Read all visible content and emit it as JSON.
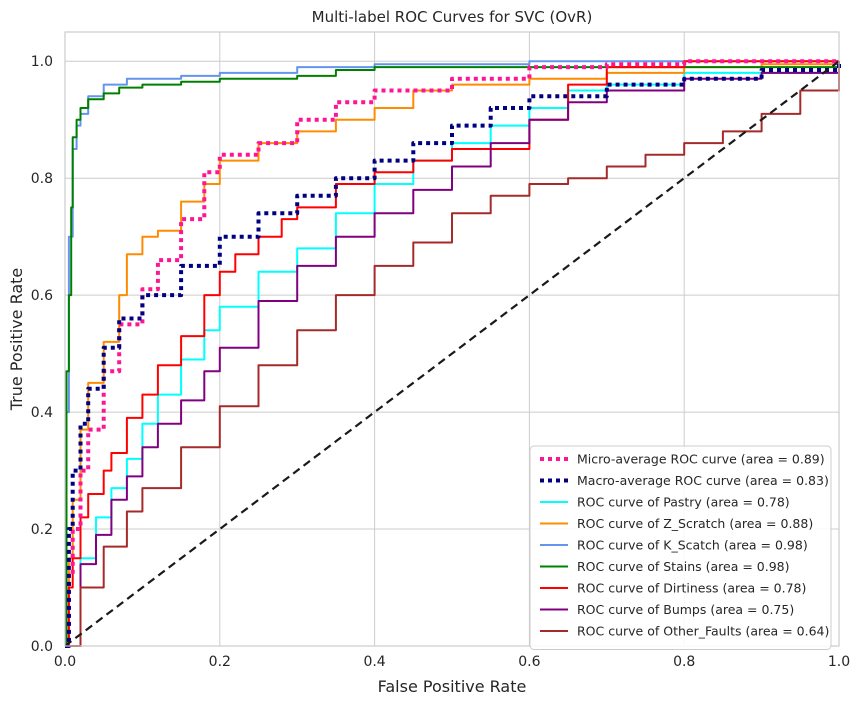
{
  "chart_data": {
    "type": "line",
    "title": "Multi-label ROC Curves for SVC (OvR)",
    "xlabel": "False Positive Rate",
    "ylabel": "True Positive Rate",
    "xlim": [
      0,
      1
    ],
    "ylim": [
      0,
      1.05
    ],
    "xticks": [
      0.0,
      0.2,
      0.4,
      0.6,
      0.8,
      1.0
    ],
    "yticks": [
      0.0,
      0.2,
      0.4,
      0.6,
      0.8,
      1.0
    ],
    "xtick_labels": [
      "0.0",
      "0.2",
      "0.4",
      "0.6",
      "0.8",
      "1.0"
    ],
    "ytick_labels": [
      "0.0",
      "0.2",
      "0.4",
      "0.6",
      "0.8",
      "1.0"
    ],
    "grid": true,
    "legend_position": "bottom-right",
    "series": [
      {
        "name": "Micro-average ROC curve (area = 0.89)",
        "color": "#ff1493",
        "dash": "dotted",
        "width": 4,
        "x": [
          0,
          0.005,
          0.01,
          0.02,
          0.03,
          0.05,
          0.07,
          0.1,
          0.12,
          0.15,
          0.18,
          0.2,
          0.25,
          0.3,
          0.35,
          0.4,
          0.5,
          0.6,
          0.7,
          0.8,
          0.9,
          1.0
        ],
        "y": [
          0,
          0.12,
          0.2,
          0.3,
          0.37,
          0.47,
          0.55,
          0.61,
          0.66,
          0.73,
          0.81,
          0.84,
          0.86,
          0.9,
          0.93,
          0.95,
          0.97,
          0.99,
          0.995,
          1.0,
          1.0,
          1.0
        ]
      },
      {
        "name": "Macro-average ROC curve (area = 0.83)",
        "color": "#000080",
        "dash": "dotted",
        "width": 4,
        "x": [
          0,
          0.005,
          0.01,
          0.02,
          0.03,
          0.05,
          0.07,
          0.1,
          0.15,
          0.2,
          0.25,
          0.3,
          0.35,
          0.4,
          0.45,
          0.5,
          0.55,
          0.6,
          0.7,
          0.8,
          0.9,
          1.0
        ],
        "y": [
          0,
          0.2,
          0.3,
          0.38,
          0.44,
          0.51,
          0.56,
          0.6,
          0.65,
          0.7,
          0.74,
          0.77,
          0.8,
          0.83,
          0.86,
          0.89,
          0.92,
          0.94,
          0.96,
          0.97,
          0.985,
          1.0
        ]
      },
      {
        "name": "ROC curve of Pastry (area = 0.78)",
        "color": "#00ffff",
        "dash": "solid",
        "width": 2,
        "x": [
          0,
          0.02,
          0.04,
          0.06,
          0.08,
          0.1,
          0.12,
          0.15,
          0.18,
          0.2,
          0.25,
          0.3,
          0.35,
          0.4,
          0.45,
          0.5,
          0.55,
          0.6,
          0.65,
          0.7,
          0.8,
          1.0
        ],
        "y": [
          0,
          0.15,
          0.22,
          0.27,
          0.32,
          0.38,
          0.43,
          0.49,
          0.54,
          0.58,
          0.64,
          0.68,
          0.74,
          0.79,
          0.83,
          0.86,
          0.89,
          0.92,
          0.95,
          0.96,
          0.98,
          1.0
        ]
      },
      {
        "name": "ROC curve of Z_Scratch (area = 0.88)",
        "color": "#ff8c00",
        "dash": "solid",
        "width": 2,
        "x": [
          0,
          0.005,
          0.01,
          0.02,
          0.03,
          0.05,
          0.07,
          0.08,
          0.1,
          0.12,
          0.15,
          0.18,
          0.2,
          0.25,
          0.3,
          0.35,
          0.4,
          0.45,
          0.5,
          0.6,
          0.7,
          0.8,
          0.9,
          1.0
        ],
        "y": [
          0,
          0.15,
          0.25,
          0.37,
          0.45,
          0.52,
          0.6,
          0.67,
          0.7,
          0.71,
          0.76,
          0.79,
          0.83,
          0.86,
          0.88,
          0.9,
          0.92,
          0.95,
          0.96,
          0.97,
          0.98,
          0.99,
          0.995,
          1.0
        ]
      },
      {
        "name": "ROC curve of K_Scatch (area = 0.98)",
        "color": "#6495ed",
        "dash": "solid",
        "width": 2,
        "x": [
          0,
          0.002,
          0.005,
          0.01,
          0.015,
          0.02,
          0.03,
          0.05,
          0.08,
          0.1,
          0.15,
          0.2,
          0.3,
          0.4,
          0.6,
          0.8,
          1.0
        ],
        "y": [
          0,
          0.4,
          0.7,
          0.85,
          0.89,
          0.91,
          0.94,
          0.96,
          0.97,
          0.97,
          0.975,
          0.98,
          0.99,
          0.995,
          1.0,
          1.0,
          1.0
        ]
      },
      {
        "name": "ROC curve of Stains (area = 0.98)",
        "color": "#008000",
        "dash": "solid",
        "width": 2,
        "x": [
          0,
          0.002,
          0.005,
          0.008,
          0.01,
          0.015,
          0.02,
          0.03,
          0.05,
          0.07,
          0.1,
          0.15,
          0.2,
          0.3,
          0.35,
          0.4,
          0.6,
          0.7,
          0.9,
          1.0
        ],
        "y": [
          0,
          0.47,
          0.6,
          0.75,
          0.87,
          0.9,
          0.92,
          0.935,
          0.945,
          0.955,
          0.96,
          0.965,
          0.97,
          0.975,
          0.985,
          0.99,
          0.99,
          0.99,
          0.99,
          1.0
        ]
      },
      {
        "name": "ROC curve of Dirtiness (area = 0.78)",
        "color": "#ff0000",
        "dash": "solid",
        "width": 2,
        "x": [
          0,
          0.005,
          0.01,
          0.02,
          0.03,
          0.05,
          0.06,
          0.08,
          0.1,
          0.12,
          0.15,
          0.18,
          0.2,
          0.22,
          0.25,
          0.28,
          0.3,
          0.35,
          0.4,
          0.45,
          0.5,
          0.55,
          0.6,
          0.65,
          0.7,
          0.8,
          0.9,
          1.0
        ],
        "y": [
          0,
          0.1,
          0.15,
          0.22,
          0.26,
          0.3,
          0.33,
          0.39,
          0.43,
          0.48,
          0.53,
          0.6,
          0.64,
          0.67,
          0.7,
          0.73,
          0.75,
          0.79,
          0.81,
          0.83,
          0.85,
          0.85,
          0.9,
          0.96,
          0.99,
          1.0,
          1.0,
          1.0
        ]
      },
      {
        "name": "ROC curve of Bumps (area = 0.75)",
        "color": "#800080",
        "dash": "solid",
        "width": 2,
        "x": [
          0,
          0.02,
          0.04,
          0.06,
          0.08,
          0.1,
          0.12,
          0.15,
          0.18,
          0.2,
          0.25,
          0.3,
          0.35,
          0.4,
          0.45,
          0.5,
          0.55,
          0.6,
          0.65,
          0.7,
          0.8,
          0.9,
          1.0
        ],
        "y": [
          0,
          0.14,
          0.19,
          0.25,
          0.29,
          0.34,
          0.38,
          0.42,
          0.47,
          0.51,
          0.59,
          0.65,
          0.7,
          0.74,
          0.78,
          0.82,
          0.86,
          0.9,
          0.93,
          0.95,
          0.97,
          0.98,
          1.0
        ]
      },
      {
        "name": "ROC curve of Other_Faults (area = 0.64)",
        "color": "#a52a2a",
        "dash": "solid",
        "width": 2,
        "x": [
          0,
          0.02,
          0.05,
          0.08,
          0.1,
          0.15,
          0.2,
          0.25,
          0.3,
          0.35,
          0.4,
          0.45,
          0.5,
          0.55,
          0.6,
          0.65,
          0.7,
          0.75,
          0.8,
          0.85,
          0.9,
          0.95,
          1.0
        ],
        "y": [
          0,
          0.1,
          0.17,
          0.23,
          0.27,
          0.34,
          0.41,
          0.48,
          0.54,
          0.6,
          0.65,
          0.69,
          0.74,
          0.77,
          0.79,
          0.8,
          0.82,
          0.84,
          0.86,
          0.88,
          0.91,
          0.95,
          1.0
        ]
      },
      {
        "name": "",
        "color": "#1a1a1a",
        "dash": "dashed",
        "width": 2.2,
        "legend": false,
        "x": [
          0,
          1
        ],
        "y": [
          0,
          1
        ]
      }
    ]
  }
}
